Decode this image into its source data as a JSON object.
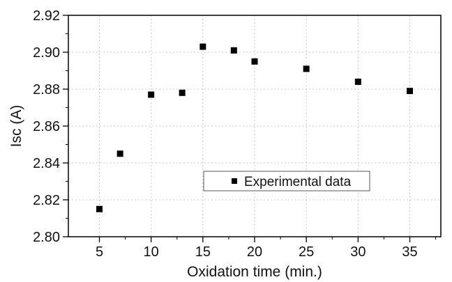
{
  "chart_data": {
    "type": "scatter",
    "xlabel": "Oxidation time (min.)",
    "ylabel": "Isc (A)",
    "xlim": [
      2,
      38
    ],
    "ylim": [
      2.8,
      2.92
    ],
    "xticks": [
      5,
      10,
      15,
      20,
      25,
      30,
      35
    ],
    "xminor_ticks": [
      7.5,
      12.5,
      17.5,
      22.5,
      27.5,
      32.5,
      37.5
    ],
    "yticks": [
      2.8,
      2.82,
      2.84,
      2.86,
      2.88,
      2.9,
      2.92
    ],
    "ytick_labels": [
      "2.80",
      "2.82",
      "2.84",
      "2.86",
      "2.88",
      "2.90",
      "2.92"
    ],
    "xtick_labels": [
      "5",
      "10",
      "15",
      "20",
      "25",
      "30",
      "35"
    ],
    "grid": true,
    "legend_position": "center-right",
    "series": [
      {
        "name": "Experimental data",
        "marker": "square",
        "color": "#000000",
        "x": [
          5,
          7,
          10,
          13,
          15,
          18,
          20,
          25,
          30,
          35
        ],
        "y": [
          2.815,
          2.845,
          2.877,
          2.878,
          2.903,
          2.901,
          2.895,
          2.891,
          2.884,
          2.879
        ]
      }
    ]
  }
}
